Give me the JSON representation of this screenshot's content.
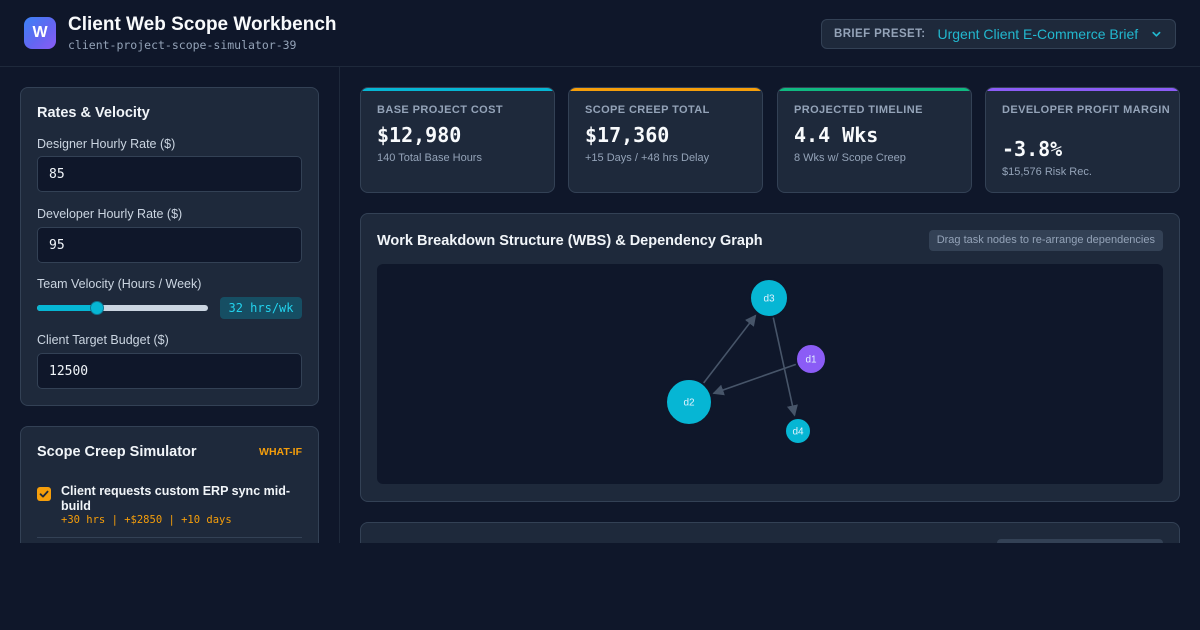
{
  "app": {
    "logo_letter": "W",
    "title": "Client Web Scope Workbench",
    "subtitle": "client-project-scope-simulator-39"
  },
  "preset": {
    "label": "BRIEF PRESET:",
    "value": "Urgent Client E-Commerce Brief",
    "icon": "chevron-down-icon"
  },
  "rates": {
    "title": "Rates & Velocity",
    "designer_label": "Designer Hourly Rate ($)",
    "designer_value": "85",
    "developer_label": "Developer Hourly Rate ($)",
    "developer_value": "95",
    "velocity_label": "Team Velocity (Hours / Week)",
    "velocity_display": "32 hrs/wk",
    "velocity_level": 0.34,
    "budget_label": "Client Target Budget ($)",
    "budget_value": "12500"
  },
  "scope": {
    "title": "Scope Creep Simulator",
    "badge": "WHAT-IF",
    "items": [
      {
        "checked": true,
        "title": "Client requests custom ERP sync mid-build",
        "meta": "+30 hrs | +$2850 | +10 days"
      }
    ]
  },
  "kpis": [
    {
      "label": "Base Project Cost",
      "value": "$12,980",
      "sub": "140 Total Base Hours",
      "color": "#06b6d4"
    },
    {
      "label": "Scope Creep Total",
      "value": "$17,360",
      "sub": "+15 Days / +48 hrs Delay",
      "color": "#f59e0b"
    },
    {
      "label": "Projected Timeline",
      "value": "4.4 Wks",
      "sub": "8 Wks w/ Scope Creep",
      "color": "#10b981"
    },
    {
      "label": "Developer Profit Margin",
      "value": "-3.8%",
      "sub": "$15,576 Risk Rec.",
      "color": "#8b5cf6"
    }
  ],
  "wbs": {
    "title": "Work Breakdown Structure (WBS) & Dependency Graph",
    "hint": "Drag task nodes to re-arrange dependencies",
    "nodes": [
      {
        "id": "d3",
        "color": "#06b6d4"
      },
      {
        "id": "d1",
        "color": "#8b5cf6"
      },
      {
        "id": "d2",
        "color": "#06b6d4"
      },
      {
        "id": "d4",
        "color": "#06b6d4"
      }
    ],
    "edges": [
      {
        "from": "d2",
        "to": "d3"
      },
      {
        "from": "d3",
        "to": "d4"
      },
      {
        "from": "d1",
        "to": "d2"
      }
    ]
  },
  "colors": {
    "accent": "#06b6d4",
    "warning": "#f59e0b",
    "success": "#10b981",
    "purple": "#8b5cf6",
    "background": "#0f172a",
    "panel": "#1e293b"
  }
}
